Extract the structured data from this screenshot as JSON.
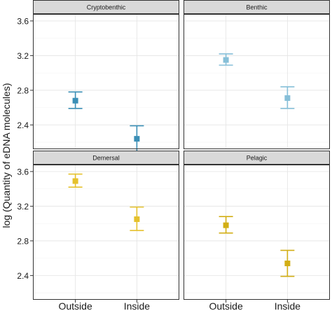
{
  "chart_data": {
    "type": "scatter",
    "subtype": "point-with-errorbars, faceted 2x2",
    "ylabel": "log (Quantity of eDNA molecules)",
    "xlabel": "",
    "categories": [
      "Outside",
      "Inside"
    ],
    "ylim": [
      2.12,
      3.68
    ],
    "yticks": [
      2.4,
      2.8,
      3.2,
      3.6
    ],
    "ytick_labels": [
      "2.4",
      "2.8",
      "3.2",
      "3.6"
    ],
    "grid": true,
    "legend": "none",
    "panels": [
      {
        "title": "Cryptobenthic",
        "color": "#3b8fb6",
        "points": [
          {
            "x": "Outside",
            "y": 2.68,
            "ymin": 2.59,
            "ymax": 2.78
          },
          {
            "x": "Inside",
            "y": 2.24,
            "ymin": 2.09,
            "ymax": 2.39
          }
        ]
      },
      {
        "title": "Benthic",
        "color": "#86bfd8",
        "points": [
          {
            "x": "Outside",
            "y": 3.15,
            "ymin": 3.09,
            "ymax": 3.22
          },
          {
            "x": "Inside",
            "y": 2.71,
            "ymin": 2.59,
            "ymax": 2.84
          }
        ]
      },
      {
        "title": "Demersal",
        "color": "#e5c12c",
        "points": [
          {
            "x": "Outside",
            "y": 3.49,
            "ymin": 3.42,
            "ymax": 3.57
          },
          {
            "x": "Inside",
            "y": 3.05,
            "ymin": 2.92,
            "ymax": 3.19
          }
        ]
      },
      {
        "title": "Pelagic",
        "color": "#d2ae14",
        "points": [
          {
            "x": "Outside",
            "y": 2.98,
            "ymin": 2.89,
            "ymax": 3.08
          },
          {
            "x": "Inside",
            "y": 2.54,
            "ymin": 2.39,
            "ymax": 2.69
          }
        ]
      }
    ]
  }
}
